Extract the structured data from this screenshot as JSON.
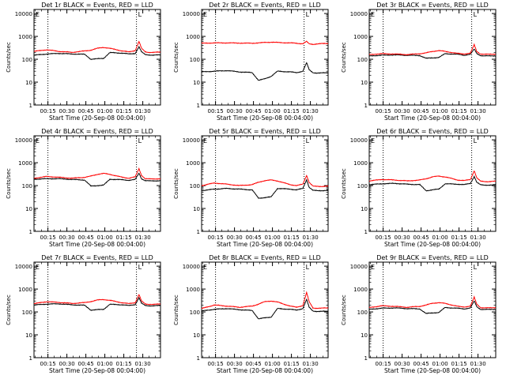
{
  "figure": {
    "xlabel": "Start Time (20-Sep-08 00:04:00)",
    "ylabel": "Counts/sec",
    "x_tick_labels": [
      "00:15",
      "00:30",
      "00:45",
      "01:00",
      "01:15",
      "01:30"
    ],
    "y_tick_labels": [
      "1",
      "10",
      "100",
      "1000",
      "10000"
    ],
    "legend_glyph": "E",
    "legend_glyph_2": "L"
  },
  "chart_data": [
    {
      "type": "line",
      "title": "Det 1r BLACK = Events, RED = LLD",
      "xlabel": "Start Time (20-Sep-08 00:04:00)",
      "ylabel": "Counts/sec",
      "xlim_minutes": [
        0,
        100
      ],
      "ylim": [
        1,
        15000
      ],
      "yscale": "log",
      "x": [
        0,
        10,
        20,
        30,
        40,
        45,
        50,
        55,
        60,
        70,
        75,
        80,
        83,
        85,
        88,
        91,
        94,
        100
      ],
      "series": [
        {
          "name": "Events",
          "color": "#000000",
          "values": [
            150,
            170,
            180,
            170,
            165,
            100,
            105,
            110,
            195,
            185,
            170,
            180,
            350,
            210,
            160,
            155,
            150,
            155
          ]
        },
        {
          "name": "LLD",
          "color": "#ff0000",
          "values": [
            220,
            260,
            220,
            200,
            230,
            250,
            300,
            330,
            300,
            230,
            210,
            240,
            600,
            300,
            210,
            200,
            200,
            205
          ]
        }
      ]
    },
    {
      "type": "line",
      "title": "Det 2r BLACK = Events, RED = LLD",
      "xlabel": "Start Time (20-Sep-08 00:04:00)",
      "ylabel": "Counts/sec",
      "xlim_minutes": [
        0,
        100
      ],
      "ylim": [
        1,
        15000
      ],
      "yscale": "log",
      "x": [
        0,
        10,
        20,
        30,
        40,
        45,
        50,
        55,
        60,
        70,
        75,
        80,
        83,
        85,
        88,
        91,
        94,
        100
      ],
      "series": [
        {
          "name": "Events",
          "color": "#000000",
          "values": [
            28,
            30,
            32,
            28,
            26,
            12,
            14,
            18,
            30,
            28,
            26,
            30,
            70,
            35,
            26,
            25,
            25,
            26
          ]
        },
        {
          "name": "LLD",
          "color": "#ff0000",
          "values": [
            500,
            520,
            520,
            510,
            500,
            520,
            540,
            560,
            540,
            520,
            500,
            480,
            600,
            470,
            450,
            470,
            480,
            490
          ]
        }
      ]
    },
    {
      "type": "line",
      "title": "Det 3r BLACK = Events, RED = LLD",
      "xlabel": "Start Time (20-Sep-08 00:04:00)",
      "ylabel": "Counts/sec",
      "xlim_minutes": [
        0,
        100
      ],
      "ylim": [
        1,
        15000
      ],
      "yscale": "log",
      "x": [
        0,
        10,
        20,
        30,
        40,
        45,
        50,
        55,
        60,
        70,
        75,
        80,
        83,
        85,
        88,
        91,
        94,
        100
      ],
      "series": [
        {
          "name": "Events",
          "color": "#000000",
          "values": [
            140,
            150,
            155,
            150,
            145,
            110,
            115,
            120,
            175,
            165,
            150,
            165,
            280,
            180,
            145,
            140,
            140,
            142
          ]
        },
        {
          "name": "LLD",
          "color": "#ff0000",
          "values": [
            160,
            175,
            170,
            160,
            175,
            190,
            220,
            240,
            220,
            180,
            170,
            185,
            430,
            220,
            170,
            165,
            165,
            168
          ]
        }
      ]
    },
    {
      "type": "line",
      "title": "Det 4r BLACK = Events, RED = LLD",
      "xlabel": "Start Time (20-Sep-08 00:04:00)",
      "ylabel": "Counts/sec",
      "xlim_minutes": [
        0,
        100
      ],
      "ylim": [
        1,
        15000
      ],
      "yscale": "log",
      "x": [
        0,
        10,
        20,
        30,
        40,
        45,
        50,
        55,
        60,
        70,
        75,
        80,
        83,
        85,
        88,
        91,
        94,
        100
      ],
      "series": [
        {
          "name": "Events",
          "color": "#000000",
          "values": [
            190,
            200,
            200,
            185,
            175,
            95,
            100,
            105,
            190,
            180,
            170,
            185,
            350,
            200,
            165,
            160,
            160,
            165
          ]
        },
        {
          "name": "LLD",
          "color": "#ff0000",
          "values": [
            210,
            250,
            230,
            210,
            230,
            260,
            310,
            340,
            310,
            230,
            210,
            240,
            550,
            280,
            200,
            195,
            195,
            200
          ]
        }
      ]
    },
    {
      "type": "line",
      "title": "Det 5r BLACK = Events, RED = LLD",
      "xlabel": "Start Time (20-Sep-08 00:04:00)",
      "ylabel": "Counts/sec",
      "xlim_minutes": [
        0,
        100
      ],
      "ylim": [
        1,
        15000
      ],
      "yscale": "log",
      "x": [
        0,
        10,
        20,
        30,
        40,
        45,
        50,
        55,
        60,
        70,
        75,
        80,
        83,
        85,
        88,
        91,
        94,
        100
      ],
      "series": [
        {
          "name": "Events",
          "color": "#000000",
          "values": [
            60,
            70,
            75,
            70,
            65,
            28,
            30,
            32,
            75,
            70,
            65,
            75,
            180,
            85,
            62,
            60,
            60,
            62
          ]
        },
        {
          "name": "LLD",
          "color": "#ff0000",
          "values": [
            100,
            130,
            115,
            100,
            110,
            140,
            165,
            175,
            160,
            110,
            100,
            115,
            280,
            140,
            95,
            92,
            92,
            95
          ]
        }
      ]
    },
    {
      "type": "line",
      "title": "Det 6r BLACK = Events, RED = LLD",
      "xlabel": "Start Time (20-Sep-08 00:04:00)",
      "ylabel": "Counts/sec",
      "xlim_minutes": [
        0,
        100
      ],
      "ylim": [
        1,
        15000
      ],
      "yscale": "log",
      "x": [
        0,
        10,
        20,
        30,
        40,
        45,
        50,
        55,
        60,
        70,
        75,
        80,
        83,
        85,
        88,
        91,
        94,
        100
      ],
      "series": [
        {
          "name": "Events",
          "color": "#000000",
          "values": [
            110,
            120,
            125,
            115,
            110,
            60,
            65,
            70,
            120,
            115,
            110,
            125,
            250,
            140,
            108,
            105,
            105,
            108
          ]
        },
        {
          "name": "LLD",
          "color": "#ff0000",
          "values": [
            160,
            185,
            175,
            160,
            175,
            200,
            240,
            260,
            240,
            175,
            165,
            185,
            450,
            220,
            155,
            150,
            150,
            155
          ]
        }
      ]
    },
    {
      "type": "line",
      "title": "Det 7r BLACK = Events, RED = LLD",
      "xlabel": "Start Time (20-Sep-08 00:04:00)",
      "ylabel": "Counts/sec",
      "xlim_minutes": [
        0,
        100
      ],
      "ylim": [
        1,
        15000
      ],
      "yscale": "log",
      "x": [
        0,
        10,
        20,
        30,
        40,
        45,
        50,
        55,
        60,
        70,
        75,
        80,
        83,
        85,
        88,
        91,
        94,
        100
      ],
      "series": [
        {
          "name": "Events",
          "color": "#000000",
          "values": [
            200,
            220,
            225,
            205,
            195,
            120,
            125,
            130,
            215,
            205,
            190,
            210,
            420,
            240,
            190,
            185,
            185,
            190
          ]
        },
        {
          "name": "LLD",
          "color": "#ff0000",
          "values": [
            230,
            280,
            260,
            235,
            255,
            285,
            330,
            350,
            320,
            250,
            230,
            255,
            580,
            300,
            220,
            215,
            215,
            220
          ]
        }
      ]
    },
    {
      "type": "line",
      "title": "Det 8r BLACK = Events, RED = LLD",
      "xlabel": "Start Time (20-Sep-08 00:04:00)",
      "ylabel": "Counts/sec",
      "xlim_minutes": [
        0,
        100
      ],
      "ylim": [
        1,
        15000
      ],
      "yscale": "log",
      "x": [
        0,
        10,
        20,
        30,
        40,
        45,
        50,
        55,
        60,
        70,
        75,
        80,
        83,
        85,
        88,
        91,
        94,
        100
      ],
      "series": [
        {
          "name": "Events",
          "color": "#000000",
          "values": [
            110,
            130,
            140,
            125,
            115,
            50,
            55,
            60,
            140,
            130,
            120,
            140,
            350,
            160,
            110,
            105,
            105,
            108
          ]
        },
        {
          "name": "LLD",
          "color": "#ff0000",
          "values": [
            140,
            200,
            180,
            160,
            180,
            220,
            280,
            300,
            270,
            180,
            160,
            190,
            700,
            280,
            150,
            145,
            145,
            150
          ]
        }
      ]
    },
    {
      "type": "line",
      "title": "Det 9r BLACK = Events, RED = LLD",
      "xlabel": "Start Time (20-Sep-08 00:04:00)",
      "ylabel": "Counts/sec",
      "xlim_minutes": [
        0,
        100
      ],
      "ylim": [
        1,
        15000
      ],
      "yscale": "log",
      "x": [
        0,
        10,
        20,
        30,
        40,
        45,
        50,
        55,
        60,
        70,
        75,
        80,
        83,
        85,
        88,
        91,
        94,
        100
      ],
      "series": [
        {
          "name": "Events",
          "color": "#000000",
          "values": [
            130,
            145,
            150,
            140,
            135,
            85,
            90,
            95,
            155,
            145,
            135,
            150,
            300,
            170,
            130,
            128,
            128,
            130
          ]
        },
        {
          "name": "LLD",
          "color": "#ff0000",
          "values": [
            155,
            185,
            175,
            160,
            175,
            200,
            240,
            255,
            235,
            175,
            165,
            180,
            440,
            220,
            155,
            150,
            150,
            155
          ]
        }
      ]
    }
  ]
}
